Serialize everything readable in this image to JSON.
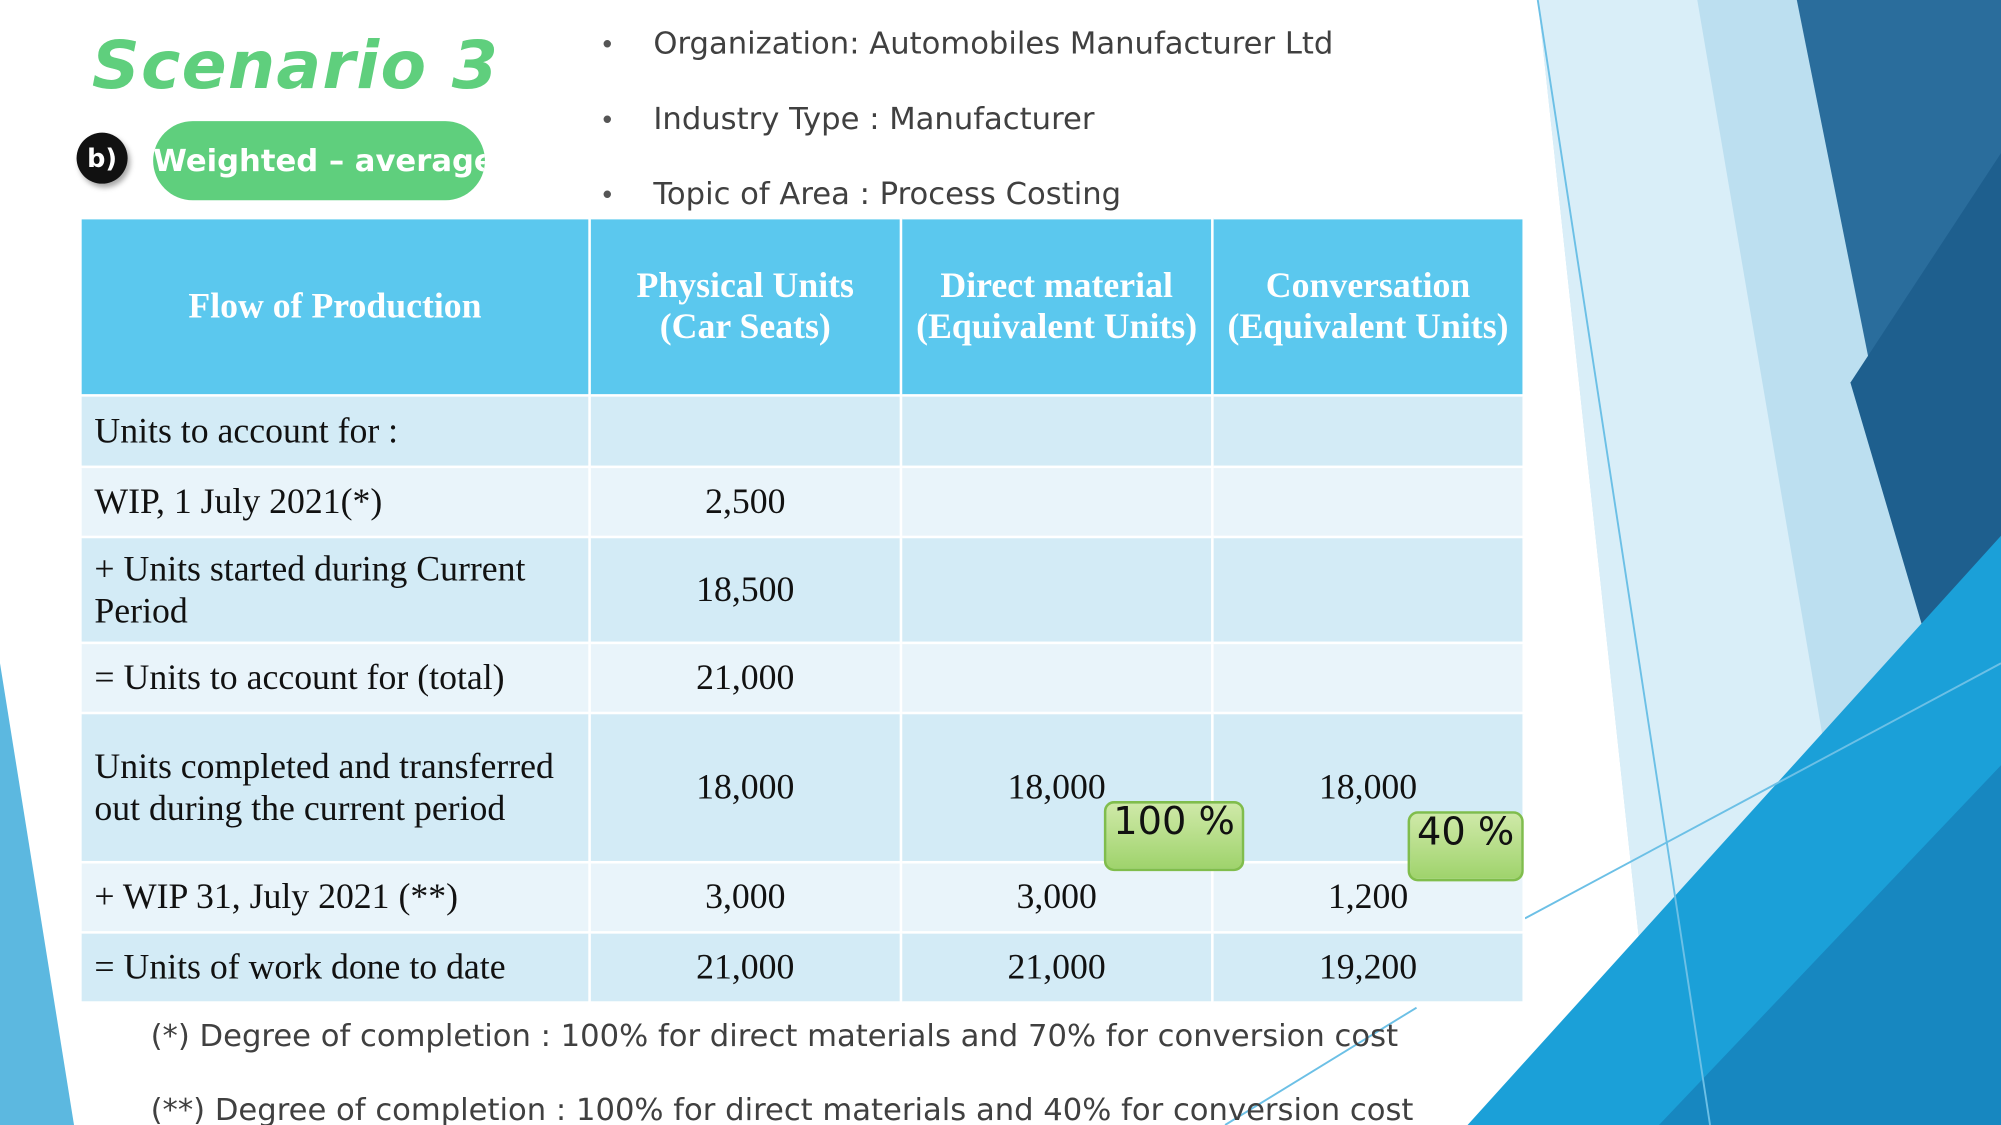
{
  "title": "Scenario 3",
  "badge": "b)",
  "method": "Weighted – average",
  "bullets": [
    "Organization: Automobiles Manufacturer Ltd",
    "Industry Type : Manufacturer",
    "Topic of Area : Process Costing"
  ],
  "table": {
    "header": [
      "Flow of Production",
      "Physical Units (Car Seats)",
      "Direct material (Equivalent Units)",
      "Conversation (Equivalent Units)"
    ],
    "rows": [
      {
        "label": "Units to account for :"
      },
      {
        "label": "WIP, 1 July 2021(*)",
        "physical": "2,500"
      },
      {
        "label": "+ Units started during Current Period",
        "physical": "18,500"
      },
      {
        "label": "= Units to account for (total)",
        "physical": "21,000"
      },
      {
        "label": "Units completed and transferred out during the current period",
        "physical": "18,000",
        "material": "18,000",
        "conversion": "18,000"
      },
      {
        "label": "+ WIP 31, July 2021 (**)",
        "physical": "3,000",
        "material": "3,000",
        "conversion": "1,200"
      },
      {
        "label": "= Units of work done to date",
        "physical": "21,000",
        "material": "21,000",
        "conversion": "19,200"
      }
    ]
  },
  "callouts": [
    "100 %",
    "40 %"
  ],
  "footnotes": [
    "(*) Degree of completion : 100% for direct materials and 70% for conversion cost",
    "(**) Degree of completion : 100% for direct materials and 40% for conversion cost"
  ]
}
